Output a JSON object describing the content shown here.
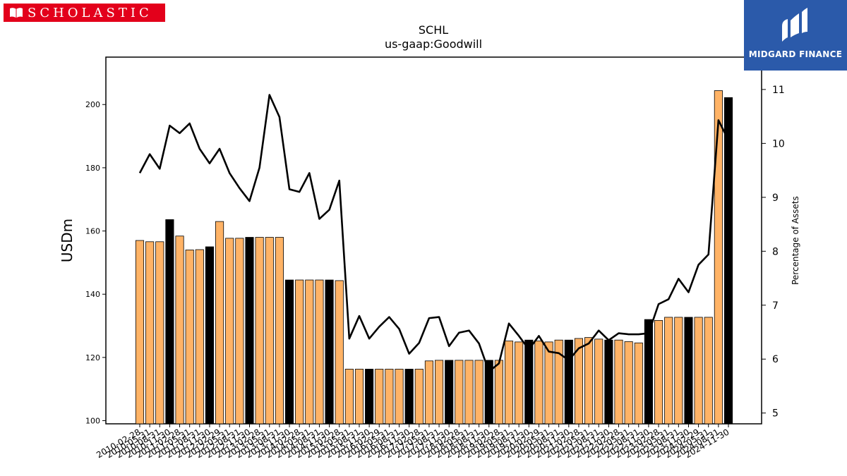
{
  "logos": {
    "left_text": "SCHOLASTIC",
    "right_text": "MIDGARD FINANCE"
  },
  "chart_data": {
    "type": "bar",
    "title": "SCHL",
    "subtitle": "us-gaap:Goodwill",
    "ylabel": "USDm",
    "y2label": "Percentage of Assets",
    "ylim": [
      99,
      215
    ],
    "y2lim": [
      4.8,
      11.6
    ],
    "yticks": [
      100,
      120,
      140,
      160,
      180,
      200
    ],
    "y2ticks": [
      5,
      6,
      7,
      8,
      9,
      10,
      11
    ],
    "colors": {
      "bar": "#ffb366",
      "bar_highlight": "#000000",
      "line": "#000000"
    },
    "categories": [
      "2010-02-28",
      "2010-05-31",
      "2010-08-31",
      "2010-11-30",
      "2011-02-28",
      "2011-05-31",
      "2011-08-31",
      "2011-11-30",
      "2012-02-29",
      "2012-05-31",
      "2012-08-31",
      "2012-11-30",
      "2013-02-28",
      "2013-05-31",
      "2013-08-31",
      "2013-11-30",
      "2014-02-28",
      "2014-05-31",
      "2014-08-31",
      "2014-11-30",
      "2015-02-28",
      "2015-05-31",
      "2015-08-31",
      "2015-11-30",
      "2016-02-29",
      "2016-05-31",
      "2016-08-31",
      "2016-11-30",
      "2017-02-28",
      "2017-05-31",
      "2017-08-31",
      "2017-11-30",
      "2018-02-28",
      "2018-05-31",
      "2018-08-31",
      "2018-11-30",
      "2019-02-28",
      "2019-05-31",
      "2019-08-31",
      "2019-11-30",
      "2020-02-29",
      "2020-05-31",
      "2020-08-31",
      "2020-11-30",
      "2021-02-28",
      "2021-05-31",
      "2021-08-31",
      "2021-11-30",
      "2022-02-28",
      "2022-05-31",
      "2022-08-31",
      "2022-11-30",
      "2023-02-28",
      "2023-05-31",
      "2023-08-31",
      "2023-11-30",
      "2024-02-29",
      "2024-05-31",
      "2024-08-31",
      "2024-11-30"
    ],
    "series": [
      {
        "type": "bar",
        "axis": "left",
        "highlight_every": 4,
        "highlight_offset": 3,
        "values": [
          157.0,
          156.6,
          156.6,
          163.6,
          158.4,
          154.0,
          154.1,
          155.0,
          163.0,
          157.7,
          157.7,
          158.0,
          158.0,
          158.0,
          158.0,
          144.5,
          144.5,
          144.5,
          144.5,
          144.5,
          144.3,
          116.3,
          116.3,
          116.3,
          116.3,
          116.3,
          116.3,
          116.3,
          116.3,
          118.9,
          119.1,
          119.1,
          119.1,
          119.1,
          119.1,
          119.1,
          119.1,
          125.2,
          124.9,
          125.5,
          125.2,
          124.9,
          125.5,
          125.5,
          126.0,
          126.3,
          125.8,
          125.5,
          125.5,
          125.0,
          124.6,
          132.0,
          131.7,
          132.7,
          132.7,
          132.7,
          132.7,
          132.7,
          204.4,
          202.2
        ]
      },
      {
        "type": "line",
        "axis": "right",
        "values": [
          9.45,
          9.8,
          9.53,
          10.33,
          10.19,
          10.37,
          9.9,
          9.63,
          9.9,
          9.45,
          9.17,
          8.93,
          9.55,
          10.9,
          10.49,
          9.15,
          9.1,
          9.45,
          8.6,
          8.77,
          9.31,
          6.38,
          6.8,
          6.38,
          6.6,
          6.78,
          6.56,
          6.1,
          6.3,
          6.76,
          6.78,
          6.24,
          6.49,
          6.53,
          6.29,
          5.77,
          5.92,
          6.66,
          6.43,
          6.18,
          6.43,
          6.14,
          6.11,
          5.98,
          6.2,
          6.29,
          6.53,
          6.35,
          6.48,
          6.46,
          6.46,
          6.48,
          7.02,
          7.11,
          7.49,
          7.24,
          7.75,
          7.94,
          10.43,
          10.06
        ]
      }
    ],
    "grid": false,
    "legend": "none"
  }
}
